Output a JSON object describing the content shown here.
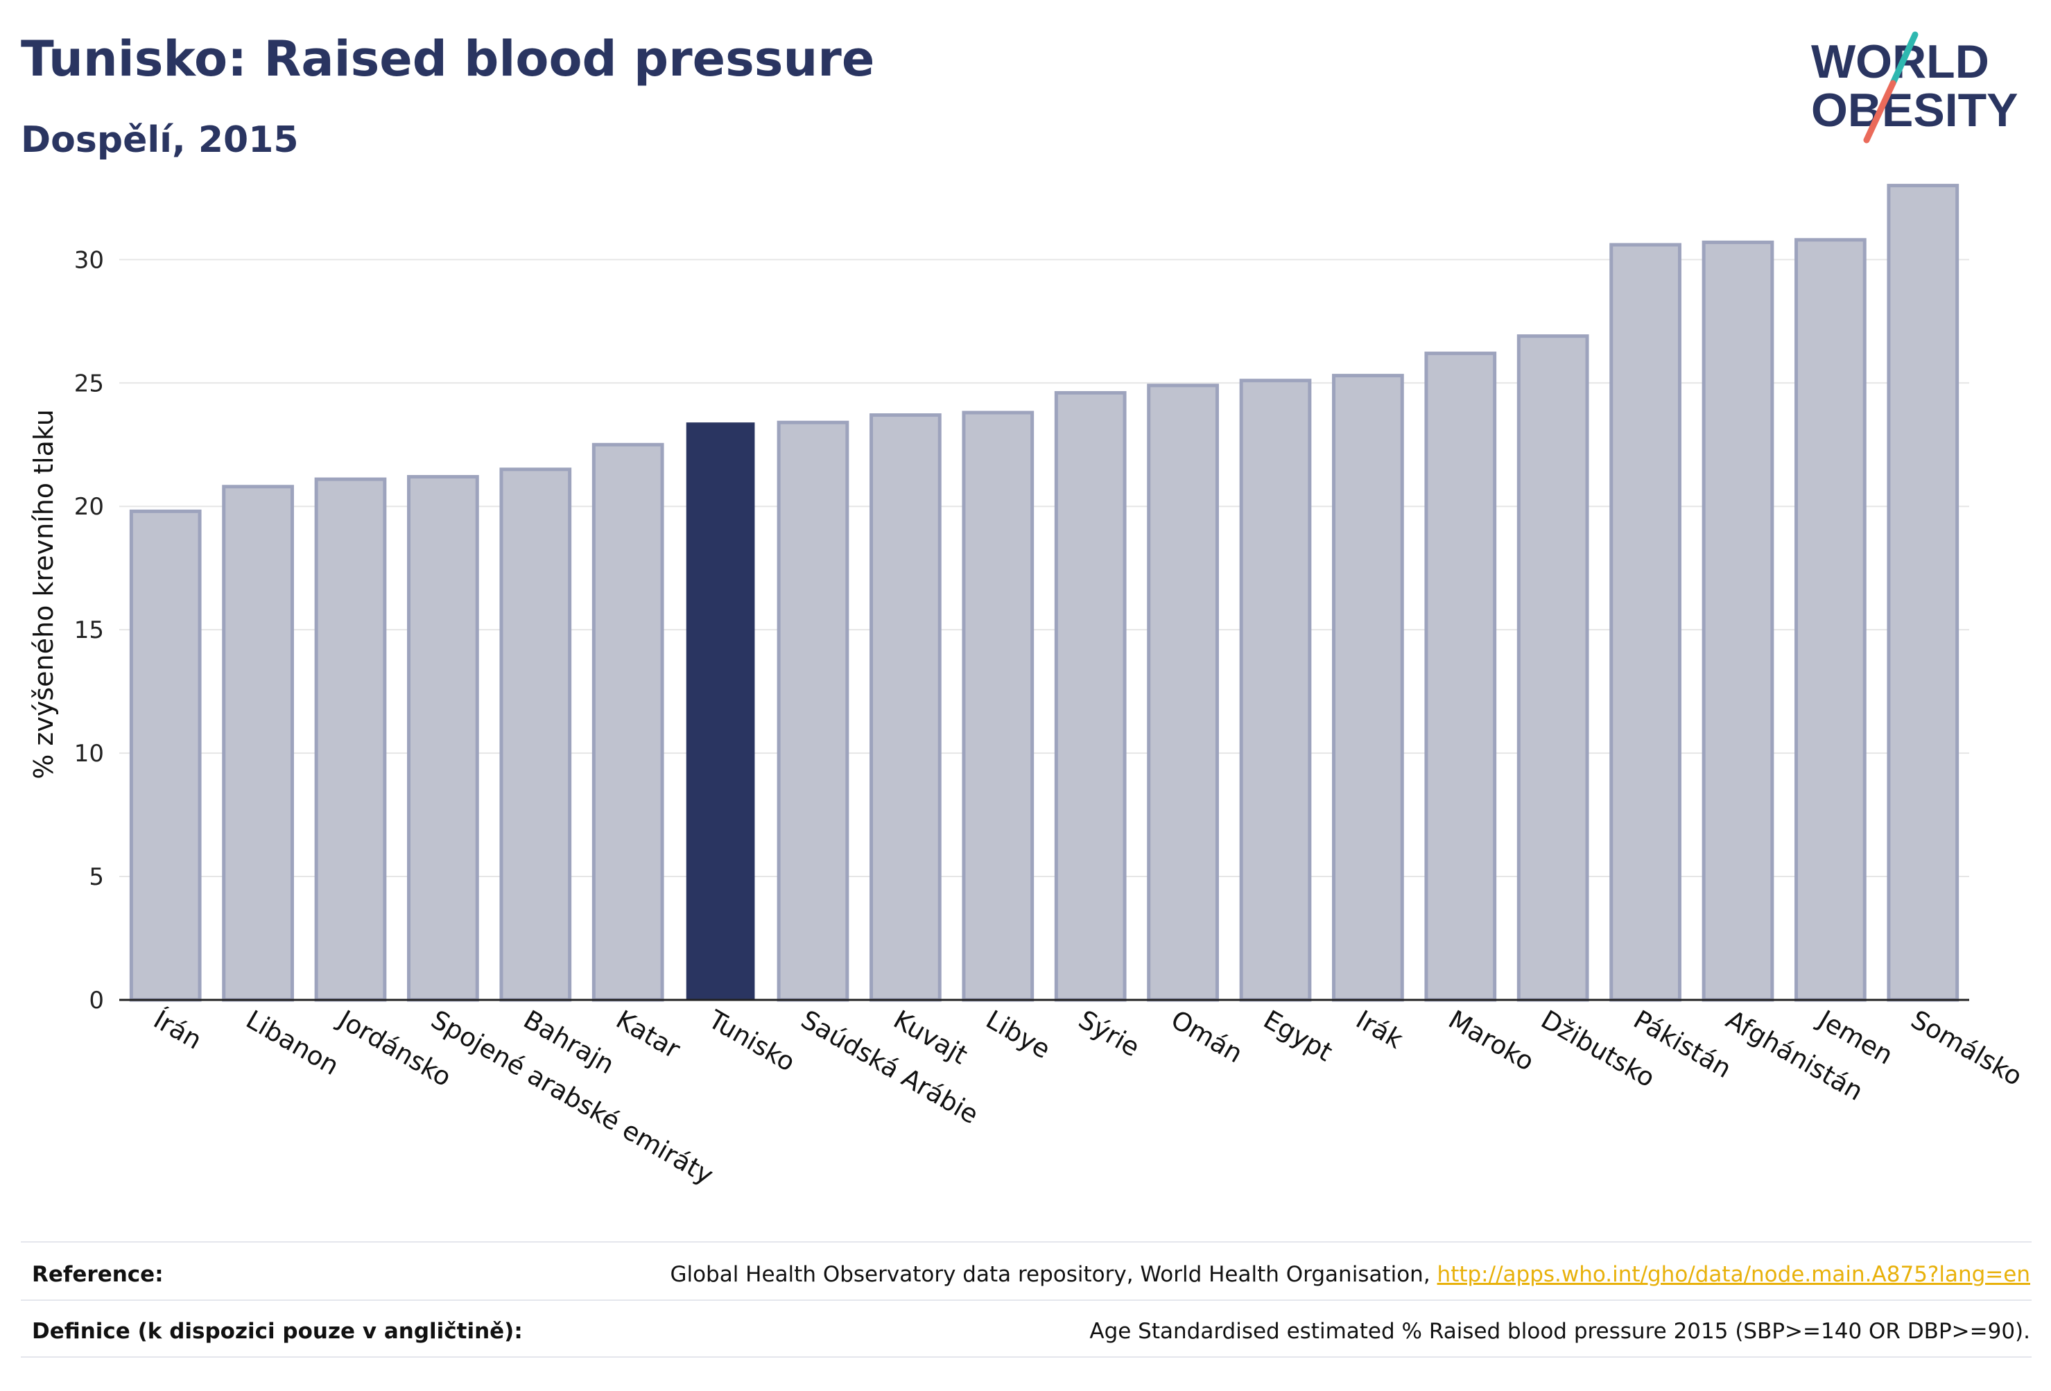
{
  "header": {
    "title": "Tunisko: Raised blood pressure",
    "subtitle": "Dospělí, 2015"
  },
  "logo": {
    "line1": "WORLD",
    "line2": "OBESITY"
  },
  "colors": {
    "highlight": "#2a3561",
    "bar": "#bfc2cf",
    "bar_border": "#9da3bd",
    "grid": "#e6e6e6",
    "link": "#e8b10b"
  },
  "chart_data": {
    "type": "bar",
    "ylabel": "% zvýšeného krevního tlaku",
    "ylim": [
      0,
      34
    ],
    "yticks": [
      0,
      5,
      10,
      15,
      20,
      25,
      30
    ],
    "grid": true,
    "highlight": "Tunisko",
    "categories": [
      "Írán",
      "Libanon",
      "Jordánsko",
      "Spojené arabské emiráty",
      "Bahrajn",
      "Katar",
      "Tunisko",
      "Saúdská Arábie",
      "Kuvajt",
      "Libye",
      "Sýrie",
      "Omán",
      "Egypt",
      "Irák",
      "Maroko",
      "Džibutsko",
      "Pákistán",
      "Afghánistán",
      "Jemen",
      "Somálsko"
    ],
    "values": [
      19.8,
      20.8,
      21.1,
      21.2,
      21.5,
      22.5,
      23.4,
      23.4,
      23.7,
      23.8,
      24.6,
      24.9,
      25.1,
      25.3,
      26.2,
      26.9,
      30.6,
      30.7,
      30.8,
      33.0
    ]
  },
  "footer": {
    "reference_label": "Reference:",
    "reference_text": "Global Health Observatory data repository, World Health Organisation, ",
    "reference_link": "http://apps.who.int/gho/data/node.main.A875?lang=en",
    "definition_label": "Definice (k dispozici pouze v angličtině):",
    "definition_text": "Age Standardised estimated % Raised blood pressure 2015 (SBP>=140 OR DBP>=90)."
  }
}
